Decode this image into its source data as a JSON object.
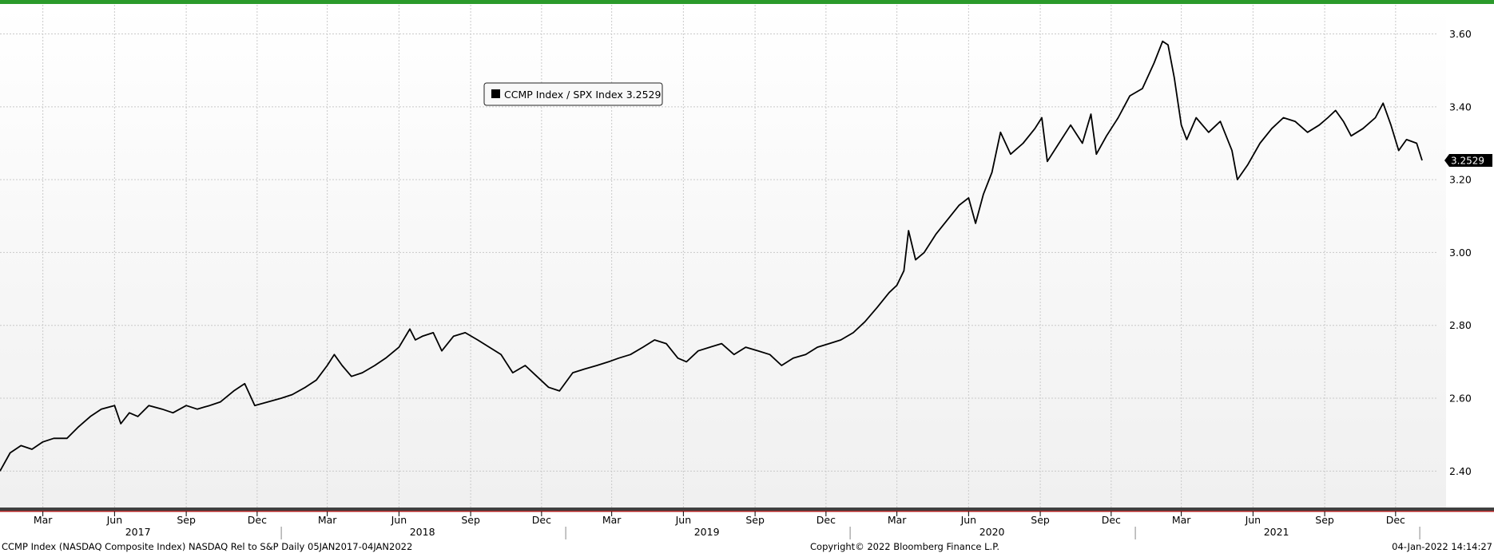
{
  "chart_data": {
    "type": "line",
    "title": "",
    "xlabel": "",
    "ylabel": "",
    "ylim": [
      2.3,
      3.68
    ],
    "xlim": [
      "2017-01-05",
      "2022-01-04"
    ],
    "yticks": [
      2.4,
      2.6,
      2.8,
      3.0,
      3.2,
      3.4,
      3.6
    ],
    "ytick_labels": [
      "2.40",
      "2.60",
      "2.80",
      "3.00",
      "3.20",
      "3.40",
      "3.60"
    ],
    "month_ticks": [
      {
        "label": "Mar",
        "date": "2017-03-01"
      },
      {
        "label": "Jun",
        "date": "2017-06-01"
      },
      {
        "label": "Sep",
        "date": "2017-09-01"
      },
      {
        "label": "Dec",
        "date": "2017-12-01"
      },
      {
        "label": "Mar",
        "date": "2018-03-01"
      },
      {
        "label": "Jun",
        "date": "2018-06-01"
      },
      {
        "label": "Sep",
        "date": "2018-09-01"
      },
      {
        "label": "Dec",
        "date": "2018-12-01"
      },
      {
        "label": "Mar",
        "date": "2019-03-01"
      },
      {
        "label": "Jun",
        "date": "2019-06-01"
      },
      {
        "label": "Sep",
        "date": "2019-09-01"
      },
      {
        "label": "Dec",
        "date": "2019-12-01"
      },
      {
        "label": "Mar",
        "date": "2020-03-01"
      },
      {
        "label": "Jun",
        "date": "2020-06-01"
      },
      {
        "label": "Sep",
        "date": "2020-09-01"
      },
      {
        "label": "Dec",
        "date": "2020-12-01"
      },
      {
        "label": "Mar",
        "date": "2021-03-01"
      },
      {
        "label": "Jun",
        "date": "2021-06-01"
      },
      {
        "label": "Sep",
        "date": "2021-09-01"
      },
      {
        "label": "Dec",
        "date": "2021-12-01"
      }
    ],
    "year_ticks": [
      {
        "label": "2017",
        "date": "2017-07-01"
      },
      {
        "label": "2018",
        "date": "2018-07-01"
      },
      {
        "label": "2019",
        "date": "2019-07-01"
      },
      {
        "label": "2020",
        "date": "2020-07-01"
      },
      {
        "label": "2021",
        "date": "2021-07-01"
      }
    ],
    "year_boundaries": [
      "2018-01-01",
      "2019-01-01",
      "2020-01-01",
      "2021-01-01",
      "2022-01-01"
    ],
    "grid": true,
    "legend": "top-left",
    "last_value_label": "3.2529",
    "series": [
      {
        "name": "CCMP Index / SPX Index 3.2529",
        "color": "#000000",
        "points": [
          [
            "2017-01-05",
            2.4
          ],
          [
            "2017-01-18",
            2.45
          ],
          [
            "2017-02-01",
            2.47
          ],
          [
            "2017-02-15",
            2.46
          ],
          [
            "2017-03-01",
            2.48
          ],
          [
            "2017-03-15",
            2.49
          ],
          [
            "2017-04-01",
            2.49
          ],
          [
            "2017-04-15",
            2.52
          ],
          [
            "2017-05-01",
            2.55
          ],
          [
            "2017-05-15",
            2.57
          ],
          [
            "2017-06-01",
            2.58
          ],
          [
            "2017-06-09",
            2.53
          ],
          [
            "2017-06-20",
            2.56
          ],
          [
            "2017-07-01",
            2.55
          ],
          [
            "2017-07-15",
            2.58
          ],
          [
            "2017-08-01",
            2.57
          ],
          [
            "2017-08-15",
            2.56
          ],
          [
            "2017-09-01",
            2.58
          ],
          [
            "2017-09-15",
            2.57
          ],
          [
            "2017-10-01",
            2.58
          ],
          [
            "2017-10-15",
            2.59
          ],
          [
            "2017-11-01",
            2.62
          ],
          [
            "2017-11-15",
            2.64
          ],
          [
            "2017-11-28",
            2.58
          ],
          [
            "2017-12-15",
            2.59
          ],
          [
            "2018-01-01",
            2.6
          ],
          [
            "2018-01-15",
            2.61
          ],
          [
            "2018-02-01",
            2.63
          ],
          [
            "2018-02-15",
            2.65
          ],
          [
            "2018-03-01",
            2.69
          ],
          [
            "2018-03-10",
            2.72
          ],
          [
            "2018-03-20",
            2.69
          ],
          [
            "2018-04-01",
            2.66
          ],
          [
            "2018-04-15",
            2.67
          ],
          [
            "2018-05-01",
            2.69
          ],
          [
            "2018-05-15",
            2.71
          ],
          [
            "2018-06-01",
            2.74
          ],
          [
            "2018-06-15",
            2.79
          ],
          [
            "2018-06-22",
            2.76
          ],
          [
            "2018-07-01",
            2.77
          ],
          [
            "2018-07-15",
            2.78
          ],
          [
            "2018-07-26",
            2.73
          ],
          [
            "2018-08-10",
            2.77
          ],
          [
            "2018-08-25",
            2.78
          ],
          [
            "2018-09-10",
            2.76
          ],
          [
            "2018-09-25",
            2.74
          ],
          [
            "2018-10-10",
            2.72
          ],
          [
            "2018-10-25",
            2.67
          ],
          [
            "2018-11-10",
            2.69
          ],
          [
            "2018-11-25",
            2.66
          ],
          [
            "2018-12-10",
            2.63
          ],
          [
            "2018-12-24",
            2.62
          ],
          [
            "2019-01-10",
            2.67
          ],
          [
            "2019-01-25",
            2.68
          ],
          [
            "2019-02-10",
            2.69
          ],
          [
            "2019-02-25",
            2.7
          ],
          [
            "2019-03-10",
            2.71
          ],
          [
            "2019-03-25",
            2.72
          ],
          [
            "2019-04-10",
            2.74
          ],
          [
            "2019-04-25",
            2.76
          ],
          [
            "2019-05-10",
            2.75
          ],
          [
            "2019-05-25",
            2.71
          ],
          [
            "2019-06-05",
            2.7
          ],
          [
            "2019-06-20",
            2.73
          ],
          [
            "2019-07-05",
            2.74
          ],
          [
            "2019-07-20",
            2.75
          ],
          [
            "2019-08-05",
            2.72
          ],
          [
            "2019-08-20",
            2.74
          ],
          [
            "2019-09-05",
            2.73
          ],
          [
            "2019-09-20",
            2.72
          ],
          [
            "2019-10-05",
            2.69
          ],
          [
            "2019-10-20",
            2.71
          ],
          [
            "2019-11-05",
            2.72
          ],
          [
            "2019-11-20",
            2.74
          ],
          [
            "2019-12-05",
            2.75
          ],
          [
            "2019-12-20",
            2.76
          ],
          [
            "2020-01-05",
            2.78
          ],
          [
            "2020-01-20",
            2.81
          ],
          [
            "2020-02-05",
            2.85
          ],
          [
            "2020-02-20",
            2.89
          ],
          [
            "2020-03-01",
            2.91
          ],
          [
            "2020-03-10",
            2.95
          ],
          [
            "2020-03-16",
            3.06
          ],
          [
            "2020-03-25",
            2.98
          ],
          [
            "2020-04-05",
            3.0
          ],
          [
            "2020-04-20",
            3.05
          ],
          [
            "2020-05-05",
            3.09
          ],
          [
            "2020-05-20",
            3.13
          ],
          [
            "2020-06-01",
            3.15
          ],
          [
            "2020-06-10",
            3.08
          ],
          [
            "2020-06-20",
            3.16
          ],
          [
            "2020-07-01",
            3.22
          ],
          [
            "2020-07-12",
            3.33
          ],
          [
            "2020-07-25",
            3.27
          ],
          [
            "2020-08-10",
            3.3
          ],
          [
            "2020-08-25",
            3.34
          ],
          [
            "2020-09-03",
            3.37
          ],
          [
            "2020-09-10",
            3.25
          ],
          [
            "2020-09-25",
            3.3
          ],
          [
            "2020-10-10",
            3.35
          ],
          [
            "2020-10-25",
            3.3
          ],
          [
            "2020-11-05",
            3.38
          ],
          [
            "2020-11-12",
            3.27
          ],
          [
            "2020-11-25",
            3.32
          ],
          [
            "2020-12-10",
            3.37
          ],
          [
            "2020-12-25",
            3.43
          ],
          [
            "2021-01-10",
            3.45
          ],
          [
            "2021-01-25",
            3.52
          ],
          [
            "2021-02-05",
            3.58
          ],
          [
            "2021-02-12",
            3.57
          ],
          [
            "2021-02-20",
            3.48
          ],
          [
            "2021-03-01",
            3.35
          ],
          [
            "2021-03-08",
            3.31
          ],
          [
            "2021-03-20",
            3.37
          ],
          [
            "2021-04-05",
            3.33
          ],
          [
            "2021-04-20",
            3.36
          ],
          [
            "2021-05-05",
            3.28
          ],
          [
            "2021-05-12",
            3.2
          ],
          [
            "2021-05-25",
            3.24
          ],
          [
            "2021-06-10",
            3.3
          ],
          [
            "2021-06-25",
            3.34
          ],
          [
            "2021-07-10",
            3.37
          ],
          [
            "2021-07-25",
            3.36
          ],
          [
            "2021-08-10",
            3.33
          ],
          [
            "2021-08-25",
            3.35
          ],
          [
            "2021-09-05",
            3.37
          ],
          [
            "2021-09-15",
            3.39
          ],
          [
            "2021-09-25",
            3.36
          ],
          [
            "2021-10-05",
            3.32
          ],
          [
            "2021-10-20",
            3.34
          ],
          [
            "2021-11-05",
            3.37
          ],
          [
            "2021-11-15",
            3.41
          ],
          [
            "2021-11-25",
            3.35
          ],
          [
            "2021-12-05",
            3.28
          ],
          [
            "2021-12-15",
            3.31
          ],
          [
            "2021-12-28",
            3.3
          ],
          [
            "2022-01-04",
            3.2529
          ]
        ]
      }
    ]
  },
  "footer": {
    "left": "CCMP Index (NASDAQ Composite Index) NASDAQ Rel to S&P  Daily 05JAN2017-04JAN2022",
    "center": "Copyright© 2022 Bloomberg Finance L.P.",
    "right": "04-Jan-2022 14:14:27"
  },
  "colors": {
    "top_bar": "#2b9a2b",
    "line": "#000000",
    "grid": "#c9c9c9",
    "separator": "#404040",
    "separator_accent": "#b02020"
  }
}
